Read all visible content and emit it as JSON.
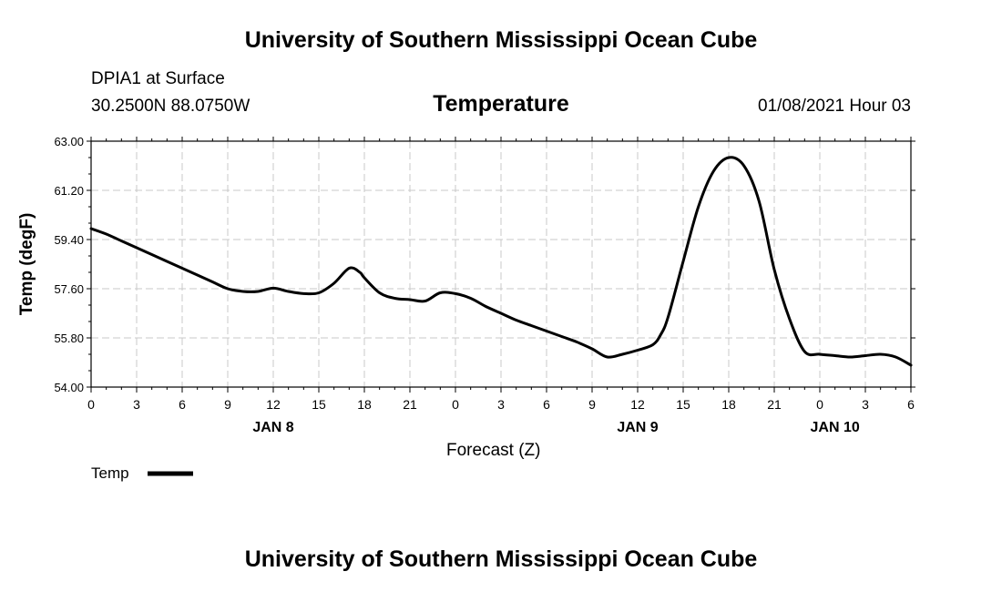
{
  "page": {
    "main_title": "University of Southern Mississippi Ocean Cube",
    "footer_title": "University of Southern Mississippi Ocean Cube",
    "station": "DPIA1 at Surface",
    "coords": "30.2500N 88.0750W",
    "timestamp": "01/08/2021 Hour 03"
  },
  "chart_data": {
    "type": "line",
    "title": "Temperature",
    "xlabel": "Forecast (Z)",
    "ylabel": "Temp (degF)",
    "ylim": [
      54.0,
      63.0
    ],
    "yticks": [
      "54.00",
      "55.80",
      "57.60",
      "59.40",
      "61.20",
      "63.00"
    ],
    "xlim": [
      0,
      54
    ],
    "xtick_labels": [
      "0",
      "3",
      "6",
      "9",
      "12",
      "15",
      "18",
      "21",
      "0",
      "3",
      "6",
      "9",
      "12",
      "15",
      "18",
      "21",
      "0",
      "3",
      "6"
    ],
    "day_labels": [
      {
        "label": "JAN 8",
        "x": 12
      },
      {
        "label": "JAN 9",
        "x": 36
      },
      {
        "label": "JAN 10",
        "x": 49
      }
    ],
    "grid": true,
    "legend": "bottom-left",
    "series": [
      {
        "name": "Temp",
        "color": "#000000",
        "x": [
          0,
          1,
          2,
          3,
          4,
          5,
          6,
          7,
          8,
          9,
          10,
          11,
          12,
          13,
          14,
          15,
          16,
          17,
          17.7,
          18,
          19,
          20,
          21,
          22,
          23,
          24,
          25,
          26,
          27,
          28,
          29,
          30,
          31,
          32,
          33,
          34,
          35,
          36,
          37,
          37.5,
          38,
          39,
          40,
          41,
          42,
          43,
          44,
          45,
          46,
          47,
          48,
          49,
          50,
          51,
          52,
          53,
          54
        ],
        "values": [
          59.8,
          59.6,
          59.35,
          59.1,
          58.85,
          58.6,
          58.35,
          58.1,
          57.85,
          57.6,
          57.5,
          57.5,
          57.62,
          57.5,
          57.42,
          57.45,
          57.8,
          58.35,
          58.2,
          58.0,
          57.45,
          57.25,
          57.2,
          57.15,
          57.45,
          57.42,
          57.25,
          56.95,
          56.7,
          56.45,
          56.25,
          56.05,
          55.85,
          55.65,
          55.4,
          55.1,
          55.2,
          55.35,
          55.55,
          55.9,
          56.55,
          58.6,
          60.6,
          61.9,
          62.4,
          62.1,
          60.8,
          58.3,
          56.5,
          55.3,
          55.2,
          55.15,
          55.1,
          55.15,
          55.2,
          55.1,
          54.8
        ]
      }
    ]
  }
}
